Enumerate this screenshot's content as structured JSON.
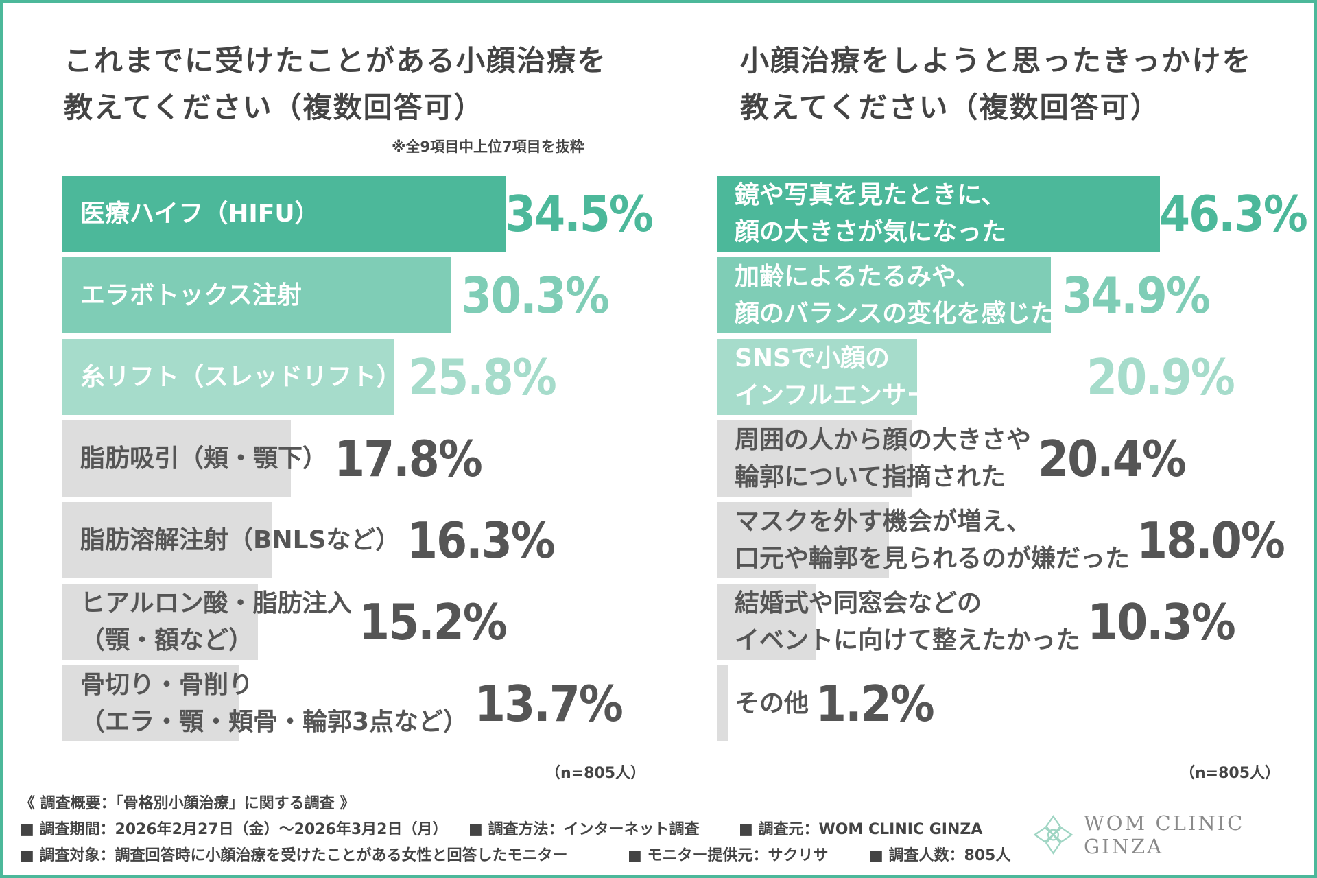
{
  "chart_data": [
    {
      "type": "bar",
      "orientation": "horizontal",
      "title": "これまでに受けたことがある小顔治療を\n教えてください（複数回答可）",
      "note": "※全9項目中上位7項目を抜粋",
      "categories": [
        [
          "医療ハイフ（HIFU）"
        ],
        [
          "エラボトックス注射"
        ],
        [
          "糸リフト（スレッドリフト）"
        ],
        [
          "脂肪吸引（頬・顎下）"
        ],
        [
          "脂肪溶解注射（BNLSなど）"
        ],
        [
          "ヒアルロン酸・脂肪注入",
          "（顎・額など）"
        ],
        [
          "骨切り・骨削り",
          "（エラ・顎・頬骨・輪郭3点など）"
        ]
      ],
      "values": [
        34.5,
        30.3,
        25.8,
        17.8,
        16.3,
        15.2,
        13.7
      ],
      "value_labels": [
        "34.5%",
        "30.3%",
        "25.8%",
        "17.8%",
        "16.3%",
        "15.2%",
        "13.7%"
      ],
      "bar_colors": [
        "#4cb89a",
        "#7fcdb6",
        "#a6dccb",
        "#dddddd",
        "#dddddd",
        "#dddddd",
        "#dddddd"
      ],
      "label_colors": [
        "#ffffff",
        "#ffffff",
        "#ffffff",
        "#555555",
        "#555555",
        "#555555",
        "#555555"
      ],
      "value_colors": [
        "#4cb89a",
        "#7fcdb6",
        "#a6dccb",
        "#555555",
        "#555555",
        "#555555",
        "#555555"
      ],
      "xlim": [
        0,
        34.5
      ],
      "sample": "（n=805人）"
    },
    {
      "type": "bar",
      "orientation": "horizontal",
      "title": "小顔治療をしようと思ったきっかけを\n教えてください（複数回答可）",
      "categories": [
        [
          "鏡や写真を見たときに、",
          "顔の大きさが気になった"
        ],
        [
          "加齢によるたるみや、",
          "顔のバランスの変化を感じた"
        ],
        [
          "SNSで小顔の",
          "インフルエンサーを見て憧れた"
        ],
        [
          "周囲の人から顔の大きさや",
          "輪郭について指摘された"
        ],
        [
          "マスクを外す機会が増え、",
          "口元や輪郭を見られるのが嫌だった"
        ],
        [
          "結婚式や同窓会などの",
          "イベントに向けて整えたかった"
        ],
        [
          "その他"
        ]
      ],
      "values": [
        46.3,
        34.9,
        20.9,
        20.4,
        18.0,
        10.3,
        1.2
      ],
      "value_labels": [
        "46.3%",
        "34.9%",
        "20.9%",
        "20.4%",
        "18.0%",
        "10.3%",
        "1.2%"
      ],
      "bar_colors": [
        "#4cb89a",
        "#7fcdb6",
        "#a6dccb",
        "#dddddd",
        "#dddddd",
        "#dddddd",
        "#dddddd"
      ],
      "label_colors": [
        "#ffffff",
        "#ffffff",
        "#ffffff",
        "#555555",
        "#555555",
        "#555555",
        "#555555"
      ],
      "value_colors": [
        "#4cb89a",
        "#7fcdb6",
        "#a6dccb",
        "#555555",
        "#555555",
        "#555555",
        "#555555"
      ],
      "xlim": [
        0,
        46.3
      ],
      "sample": "（n=805人）"
    }
  ],
  "footer": {
    "heading": "《 調査概要：「骨格別小顔治療」に関する調査 》",
    "row1": [
      "■ 調査期間：2026年2月27日（金）〜2026年3月2日（月）",
      "■ 調査方法：インターネット調査",
      "■ 調査元：WOM CLINIC GINZA"
    ],
    "row2": [
      "■ 調査対象：調査回答時に小顔治療を受けたことがある女性と回答したモニター",
      "■ モニター提供元：サクリサ",
      "■ 調査人数：805人"
    ]
  },
  "logo": {
    "text": "WOM CLINIC GINZA",
    "icon": "lotus-logo-icon",
    "color": "#9fd5c3"
  },
  "colors": {
    "border": "#4cb89a",
    "text": "#444444"
  }
}
